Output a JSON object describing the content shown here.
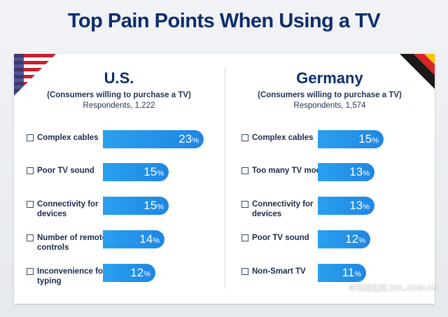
{
  "title": "Top Pain Points When Using a TV",
  "panels": [
    {
      "country": "U.S.",
      "subtitle": "(Consumers willing to purchase a TV)",
      "respondents": "Respondents, 1,222"
    },
    {
      "country": "Germany",
      "subtitle": "(Consumers willing to purchase a TV)",
      "respondents": "Respondents, 1,574"
    }
  ],
  "chart_data": [
    {
      "type": "bar",
      "title": "U.S.",
      "categories": [
        "Complex cables",
        "Poor TV sound",
        "Connectivity for devices",
        "Number of remote controls",
        "Inconvenience for typing"
      ],
      "values": [
        23,
        15,
        15,
        14,
        12
      ],
      "unit": "%"
    },
    {
      "type": "bar",
      "title": "Germany",
      "categories": [
        "Complex cables",
        "Too many TV models",
        "Connectivity for devices",
        "Poor TV sound",
        "Non-Smart TV"
      ],
      "values": [
        15,
        13,
        13,
        12,
        11
      ],
      "unit": "%"
    }
  ],
  "colors": {
    "title": "#0d2d6b",
    "bar": "#1f8fea"
  },
  "watermark": "中关村在线 ZOL.COM.CN"
}
